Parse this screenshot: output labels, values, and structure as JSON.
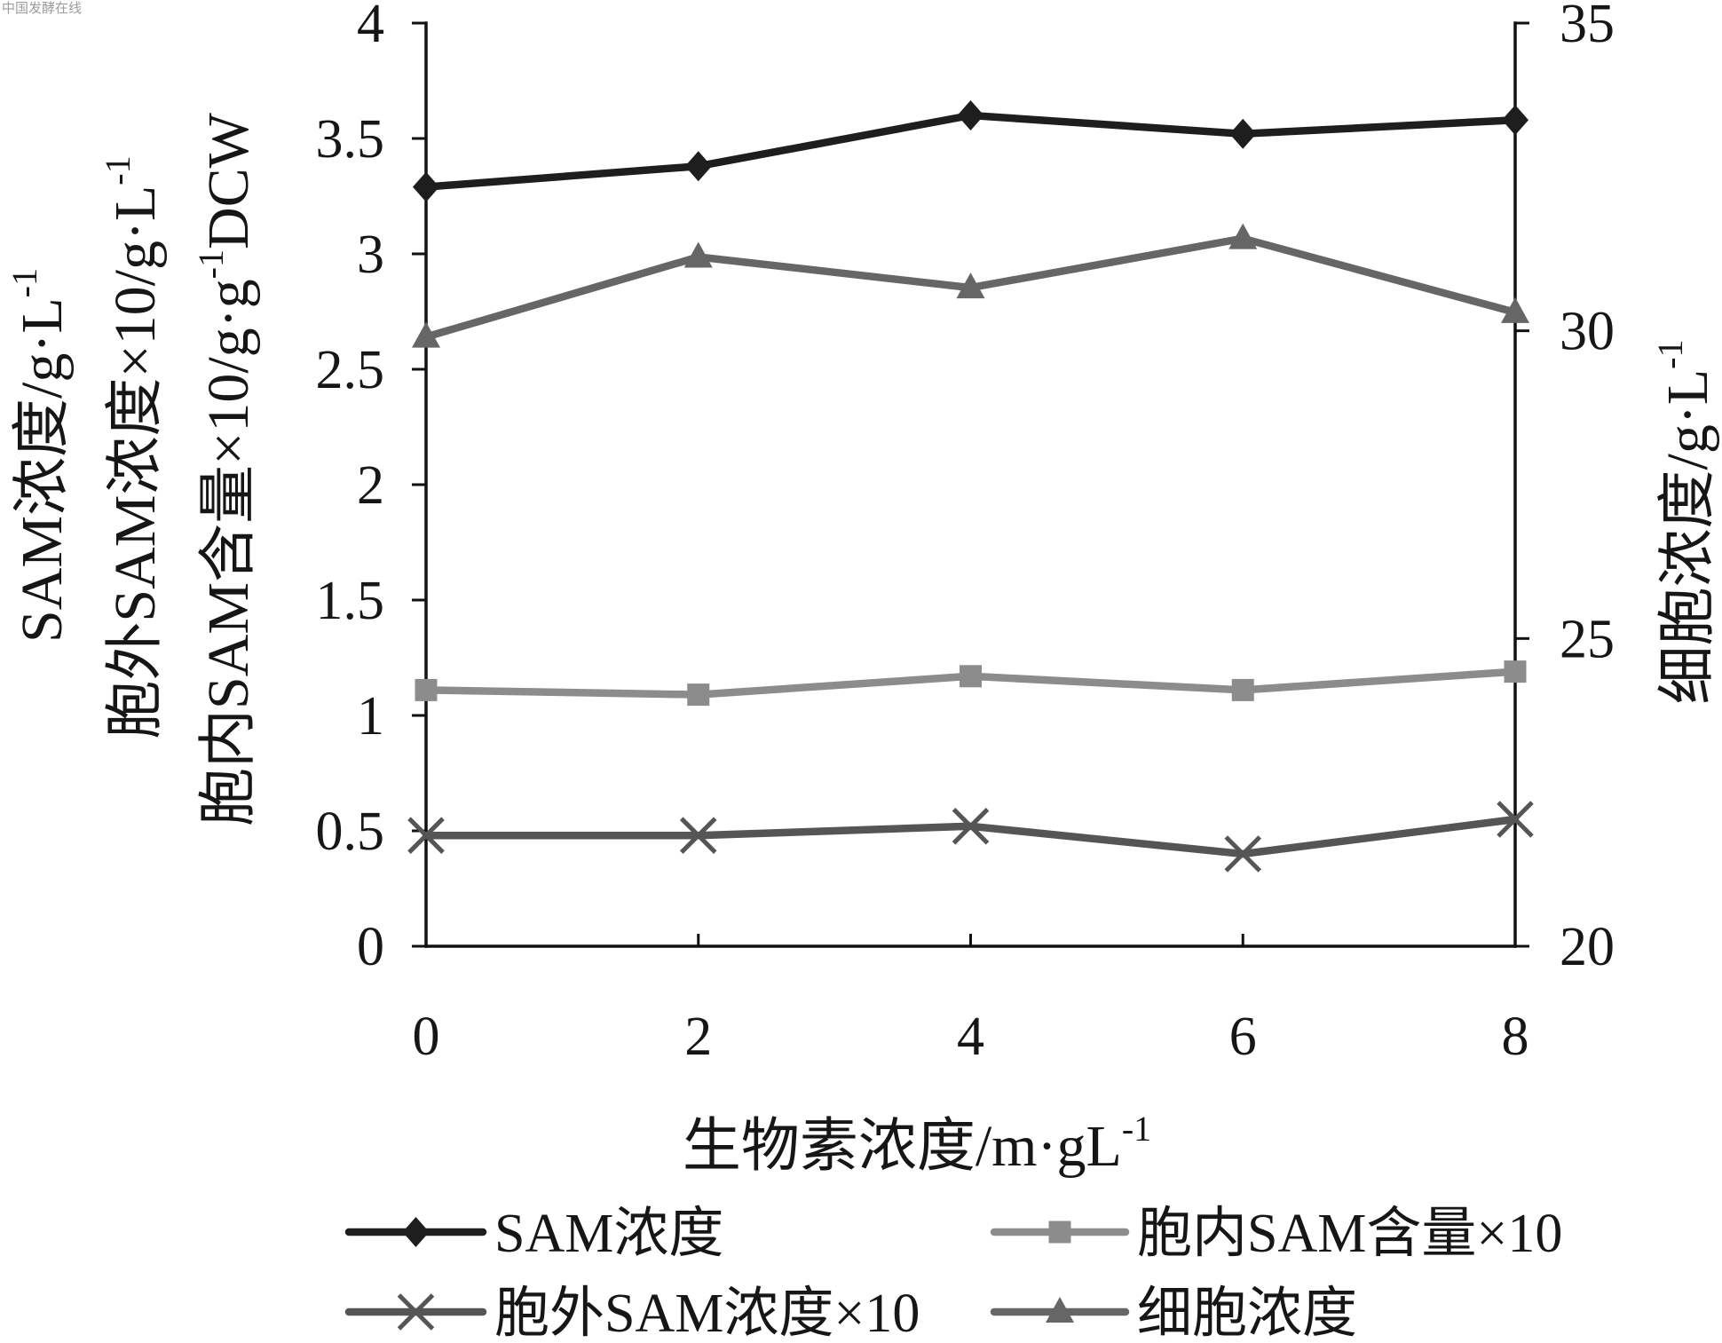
{
  "watermark": "中国发酵在线",
  "chart_data": {
    "type": "line",
    "x": [
      0,
      2,
      4,
      6,
      8
    ],
    "xlim": [
      0,
      8
    ],
    "x_ticks": [
      0,
      2,
      4,
      6,
      8
    ],
    "xlabel": {
      "parts": [
        {
          "text": "生物素浓度/m·gL"
        },
        {
          "text": "-1",
          "sup": true
        }
      ]
    },
    "ylabels_left": [
      {
        "parts": [
          {
            "text": "SAM浓度/g·L"
          },
          {
            "text": "-1",
            "sup": true
          }
        ]
      },
      {
        "parts": [
          {
            "text": "胞外SAM浓度×10/g·L"
          },
          {
            "text": "-1",
            "sup": true
          }
        ]
      },
      {
        "parts": [
          {
            "text": "胞内SAM含量×10/g·g"
          },
          {
            "text": "-1",
            "sup": true
          },
          {
            "text": "DCW"
          }
        ]
      }
    ],
    "ylim_left": [
      0,
      4
    ],
    "y_ticks_left": [
      0,
      0.5,
      1,
      1.5,
      2,
      2.5,
      3,
      3.5,
      4
    ],
    "ylabel_right": {
      "parts": [
        {
          "text": "细胞浓度/g·L"
        },
        {
          "text": "-1",
          "sup": true
        }
      ]
    },
    "ylim_right": [
      20,
      35
    ],
    "y_ticks_right": [
      20,
      25,
      30,
      35
    ],
    "grid": false,
    "legend_position": "bottom",
    "series": [
      {
        "name": "SAM浓度",
        "axis": "left",
        "marker": "diamond",
        "color": "#1e1e1e",
        "values": [
          3.29,
          3.38,
          3.6,
          3.52,
          3.58
        ]
      },
      {
        "name": "胞内SAM含量×10",
        "axis": "left",
        "marker": "square",
        "color": "#8c8c8c",
        "values": [
          1.11,
          1.09,
          1.17,
          1.11,
          1.19
        ]
      },
      {
        "name": "胞外SAM浓度×10",
        "axis": "left",
        "marker": "x",
        "color": "#555555",
        "values": [
          0.48,
          0.48,
          0.52,
          0.4,
          0.55
        ]
      },
      {
        "name": "细胞浓度",
        "axis": "right",
        "marker": "triangle",
        "color": "#666666",
        "values": [
          29.9,
          31.2,
          30.7,
          31.5,
          30.3
        ]
      }
    ]
  }
}
